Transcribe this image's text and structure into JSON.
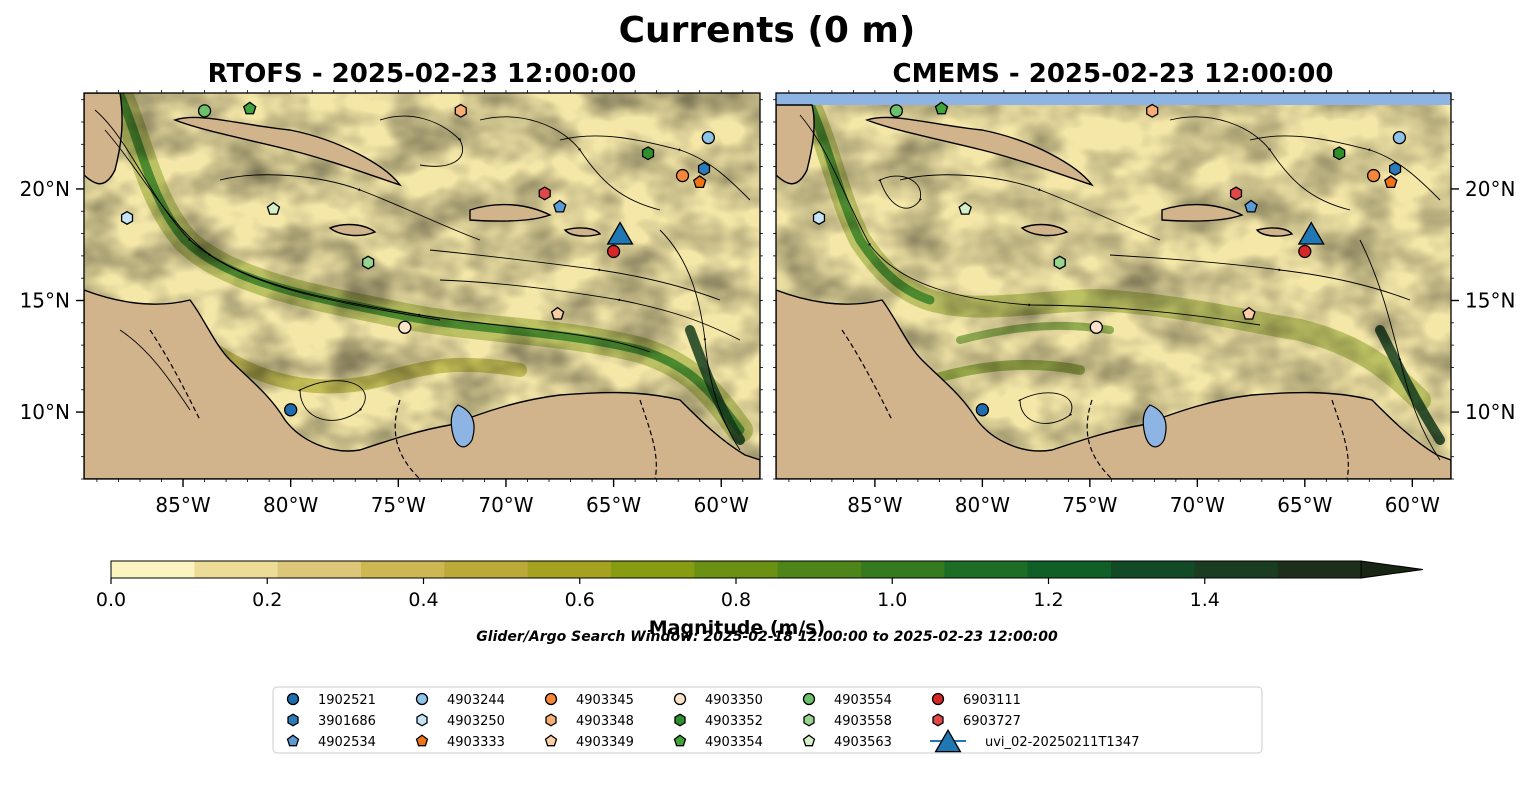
{
  "figure": {
    "title": "Currents (0 m)",
    "search_window": "Glider/Argo Search Window: 2025-02-18 12:00:00 to 2025-02-23 12:00:00"
  },
  "chart_data": [
    {
      "type": "heatmap",
      "title": "RTOFS - 2025-02-23 12:00:00",
      "xlim": [
        -89.6,
        -58.2
      ],
      "ylim": [
        7.0,
        24.3
      ],
      "x_ticks": [
        "85°W",
        "80°W",
        "75°W",
        "70°W",
        "65°W",
        "60°W"
      ],
      "x_tick_values": [
        -85,
        -80,
        -75,
        -70,
        -65,
        -60
      ],
      "y_ticks": [
        "10°N",
        "15°N",
        "20°N"
      ],
      "y_tick_values": [
        10,
        15,
        20
      ],
      "y_tick_side": "left",
      "grid": false,
      "streamlines": true,
      "land_color": "#d2b48c",
      "lake_color": "#8eb4e3"
    },
    {
      "type": "heatmap",
      "title": "CMEMS - 2025-02-23 12:00:00",
      "xlim": [
        -89.6,
        -58.2
      ],
      "ylim": [
        7.0,
        24.3
      ],
      "x_ticks": [
        "85°W",
        "80°W",
        "75°W",
        "70°W",
        "65°W",
        "60°W"
      ],
      "x_tick_values": [
        -85,
        -80,
        -75,
        -70,
        -65,
        -60
      ],
      "y_ticks": [
        "10°N",
        "15°N",
        "20°N"
      ],
      "y_tick_values": [
        10,
        15,
        20
      ],
      "y_tick_side": "right",
      "grid": false,
      "streamlines": true,
      "land_color": "#d2b48c",
      "lake_color": "#8eb4e3"
    }
  ],
  "colorbar": {
    "label": "Magnitude (m/s)",
    "min": 0.0,
    "max": 1.6,
    "step": 0.1,
    "extend": "max",
    "ticks": [
      "0.0",
      "0.2",
      "0.4",
      "0.6",
      "0.8",
      "1.0",
      "1.2",
      "1.4"
    ],
    "tick_values": [
      0.0,
      0.2,
      0.4,
      0.6,
      0.8,
      1.0,
      1.2,
      1.4
    ],
    "colors": [
      "#fbf4c1",
      "#ecdc98",
      "#dcc677",
      "#cdb753",
      "#bcaa38",
      "#a4a21f",
      "#889c12",
      "#6a9112",
      "#4e8519",
      "#367a20",
      "#1d6e24",
      "#0f5f27",
      "#134a26",
      "#1a3d22",
      "#1d2f1b",
      "#182515"
    ]
  },
  "platforms": [
    {
      "id": "1902521",
      "marker": "circle",
      "color": "#1f6db0",
      "positions": [
        [
          -80.0,
          10.1
        ]
      ]
    },
    {
      "id": "3901686",
      "marker": "hexagon",
      "color": "#2b7bba",
      "positions": [
        [
          -60.8,
          20.9
        ]
      ]
    },
    {
      "id": "4902534",
      "marker": "pentagon",
      "color": "#5b9bd5",
      "positions": [
        [
          -67.5,
          19.2
        ]
      ]
    },
    {
      "id": "4903244",
      "marker": "circle",
      "color": "#8ec3ea",
      "positions": [
        [
          -60.6,
          22.3
        ]
      ]
    },
    {
      "id": "4903250",
      "marker": "hexagon",
      "color": "#c6e4f7",
      "positions": [
        [
          -87.6,
          18.7
        ]
      ]
    },
    {
      "id": "4903333",
      "marker": "pentagon",
      "color": "#f07314",
      "positions": [
        [
          -61.0,
          20.3
        ]
      ]
    },
    {
      "id": "4903345",
      "marker": "circle",
      "color": "#f4873a",
      "positions": [
        [
          -61.8,
          20.6
        ]
      ]
    },
    {
      "id": "4903348",
      "marker": "hexagon",
      "color": "#f8ae72",
      "positions": [
        [
          -72.1,
          23.5
        ]
      ]
    },
    {
      "id": "4903349",
      "marker": "pentagon",
      "color": "#fbcea6",
      "positions": [
        [
          -67.6,
          14.4
        ]
      ]
    },
    {
      "id": "4903350",
      "marker": "circle",
      "color": "#fde3cc",
      "positions": [
        [
          -74.7,
          13.8
        ]
      ]
    },
    {
      "id": "4903352",
      "marker": "hexagon",
      "color": "#2f8f2b",
      "positions": [
        [
          -63.4,
          21.6
        ]
      ]
    },
    {
      "id": "4903354",
      "marker": "pentagon",
      "color": "#3fa43a",
      "positions": [
        [
          -81.9,
          23.6
        ]
      ]
    },
    {
      "id": "4903554",
      "marker": "circle",
      "color": "#6cc06a",
      "positions": [
        [
          -84.0,
          23.5
        ]
      ]
    },
    {
      "id": "4903558",
      "marker": "hexagon",
      "color": "#97d48e",
      "positions": [
        [
          -76.4,
          16.7
        ]
      ]
    },
    {
      "id": "4903563",
      "marker": "pentagon",
      "color": "#d3f0c8",
      "positions": [
        [
          -80.8,
          19.1
        ]
      ]
    },
    {
      "id": "6903111",
      "marker": "circle",
      "color": "#d62728",
      "positions": [
        [
          -65.0,
          17.2
        ]
      ]
    },
    {
      "id": "6903727",
      "marker": "hexagon",
      "color": "#e04848",
      "positions": [
        [
          -68.2,
          19.8
        ]
      ]
    },
    {
      "id": "uvi_02-20250211T1347",
      "marker": "triangle",
      "color": "#1f77b4",
      "positions": [
        [
          -64.7,
          18.1
        ]
      ]
    }
  ],
  "legend": {
    "placement": "bottom-center",
    "columns": 7
  }
}
